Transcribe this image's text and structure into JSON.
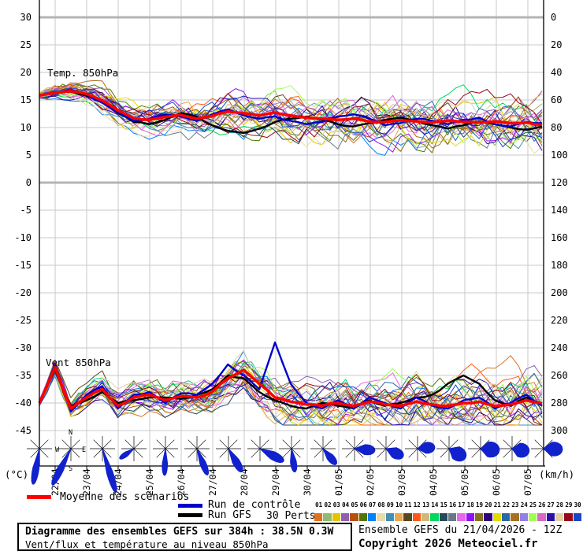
{
  "axes": {
    "left_unit": "(°C)",
    "right_unit": "(km/h)",
    "left_ticks": [
      30,
      25,
      20,
      15,
      10,
      5,
      0,
      -5,
      -10,
      -15,
      -20,
      -25,
      -30,
      -35,
      -40,
      -45
    ],
    "right_ticks": [
      300,
      280,
      260,
      240,
      220,
      200,
      180,
      160,
      140,
      120,
      100,
      80,
      60,
      40,
      20,
      0
    ],
    "dates": [
      "22/04",
      "23/04",
      "24/04",
      "25/04",
      "26/04",
      "27/04",
      "28/04",
      "29/04",
      "30/04",
      "01/05",
      "02/05",
      "03/05",
      "04/05",
      "05/05",
      "06/05",
      "07/05"
    ],
    "temp_panel_label": "Temp. 850hPa",
    "wind_panel_label": "Vent 850hPa"
  },
  "legend": {
    "mean_label": "Moyenne des scénarios",
    "control_label": "Run de contrôle",
    "gfs_label": "Run GFS",
    "perts_label": "30 Perts.",
    "mean_color": "#FF0000",
    "control_color": "#0000CC",
    "gfs_color": "#000000",
    "member_numbers": [
      "01",
      "02",
      "03",
      "04",
      "05",
      "06",
      "07",
      "08",
      "09",
      "10",
      "11",
      "12",
      "13",
      "14",
      "15",
      "16",
      "17",
      "18",
      "19",
      "20",
      "21",
      "22",
      "23",
      "24",
      "25",
      "26",
      "27",
      "28",
      "29",
      "30"
    ]
  },
  "footer": {
    "title": "Diagramme des ensembles GEFS sur 384h : 38.5N 0.3W",
    "subtitle": "Vent/flux et température au niveau 850hPa",
    "run_info": "Ensemble GEFS du 21/04/2026 - 12Z",
    "copyright": "Copyright 2026 Meteociel.fr"
  },
  "compass": {
    "n": "N",
    "s": "S",
    "e": "E",
    "w": "W"
  },
  "chart_data": {
    "type": "line",
    "title": "Diagramme des ensembles GEFS sur 384h : 38.5N 0.3W",
    "x_start": "21/04 12Z",
    "x_step_hours": 12,
    "x_total_hours": 384,
    "left_axis": {
      "label": "(°C)",
      "min": -45,
      "max": 30,
      "step": 5
    },
    "right_axis": {
      "label": "(km/h)",
      "min": 0,
      "max": 300,
      "step": 20
    },
    "grid": true,
    "legend_position": "bottom",
    "series": [
      {
        "name": "Moyenne des scénarios",
        "color": "#FF0000",
        "width": 3.5,
        "temp": [
          15.8,
          16.3,
          16.6,
          16.1,
          14.9,
          13.1,
          11.7,
          11.4,
          11.9,
          12.3,
          11.6,
          12.1,
          12.9,
          12.6,
          12.2,
          12.7,
          12.2,
          11.8,
          11.6,
          11.4,
          11.6,
          11.1,
          11.0,
          11.3,
          11.1,
          10.9,
          11.2,
          11.0,
          10.9,
          11.1,
          10.8,
          10.9,
          10.5
        ],
        "wind": [
          20,
          46,
          16,
          24,
          30,
          18,
          24,
          26,
          22,
          25,
          24,
          28,
          38,
          44,
          34,
          24,
          21,
          19,
          18,
          20,
          18,
          21,
          19,
          18,
          21,
          19,
          18,
          20,
          21,
          18,
          19,
          22,
          20
        ]
      },
      {
        "name": "Run de contrôle",
        "color": "#0000CC",
        "width": 2.4,
        "temp": [
          15.8,
          16.2,
          16.8,
          16.0,
          14.5,
          12.8,
          11.2,
          11.6,
          12.3,
          12.0,
          11.2,
          12.4,
          13.3,
          12.2,
          11.6,
          12.0,
          11.2,
          10.6,
          11.0,
          12.0,
          12.4,
          11.6,
          10.4,
          10.8,
          11.6,
          11.2,
          10.6,
          11.4,
          11.8,
          10.6,
          10.2,
          11.0,
          10.8
        ],
        "wind": [
          20,
          48,
          14,
          26,
          32,
          16,
          26,
          28,
          20,
          27,
          26,
          34,
          48,
          40,
          30,
          64,
          34,
          20,
          16,
          22,
          16,
          24,
          20,
          16,
          24,
          18,
          16,
          22,
          24,
          16,
          20,
          26,
          18
        ]
      },
      {
        "name": "Run GFS",
        "color": "#000000",
        "width": 2.4,
        "temp": [
          15.8,
          16.4,
          16.5,
          15.8,
          14.6,
          12.6,
          11.0,
          10.6,
          11.4,
          12.6,
          12.0,
          10.4,
          9.4,
          9.0,
          9.8,
          11.0,
          11.6,
          12.0,
          11.4,
          10.6,
          10.2,
          10.8,
          11.4,
          11.8,
          11.2,
          10.4,
          9.8,
          10.4,
          11.0,
          10.6,
          10.0,
          9.6,
          10.2
        ],
        "wind": [
          20,
          44,
          18,
          22,
          28,
          20,
          22,
          24,
          24,
          23,
          26,
          30,
          40,
          38,
          28,
          22,
          18,
          16,
          20,
          18,
          16,
          22,
          18,
          20,
          24,
          26,
          34,
          40,
          34,
          22,
          18,
          24,
          20
        ]
      }
    ],
    "members": {
      "count": 30,
      "temp_range_end": [
        5,
        18
      ],
      "wind_range_end": [
        5,
        46
      ],
      "colors": [
        "#E07020",
        "#8FBC70",
        "#E3C400",
        "#8E5FAE",
        "#B85108",
        "#507800",
        "#0080FF",
        "#E8DCA8",
        "#4090B8",
        "#E8A850",
        "#584820",
        "#FF5818",
        "#D0B878",
        "#00D860",
        "#284858",
        "#687888",
        "#E868E8",
        "#9010FF",
        "#887020",
        "#300080",
        "#E3DC00",
        "#2868A8",
        "#A87020",
        "#9080E8",
        "#A0FF50",
        "#D868C8",
        "#2810A8",
        "#E0D0A8",
        "#980818",
        "#1848C8"
      ]
    },
    "wind_roses": [
      {
        "a": 190,
        "l": 46,
        "s": 9
      },
      {
        "a": 207,
        "l": 52,
        "s": 8
      },
      {
        "a": 163,
        "l": 58,
        "s": 7
      },
      {
        "a": 235,
        "l": 22,
        "s": 14
      },
      {
        "a": 182,
        "l": 34,
        "s": 10
      },
      {
        "a": 158,
        "l": 36,
        "s": 11
      },
      {
        "a": 150,
        "l": 34,
        "s": 14
      },
      {
        "a": 118,
        "l": 34,
        "s": 16
      },
      {
        "a": 172,
        "l": 30,
        "s": 13
      },
      {
        "a": 140,
        "l": 26,
        "s": 18
      },
      {
        "a": 95,
        "l": 26,
        "s": 26
      },
      {
        "a": 115,
        "l": 24,
        "s": 30
      },
      {
        "a": 85,
        "l": 22,
        "s": 34
      },
      {
        "a": 120,
        "l": 24,
        "s": 40
      },
      {
        "a": 95,
        "l": 24,
        "s": 45
      },
      {
        "a": 100,
        "l": 22,
        "s": 45
      },
      {
        "a": 92,
        "l": 24,
        "s": 40
      }
    ],
    "rose_color": "#1122CC"
  }
}
